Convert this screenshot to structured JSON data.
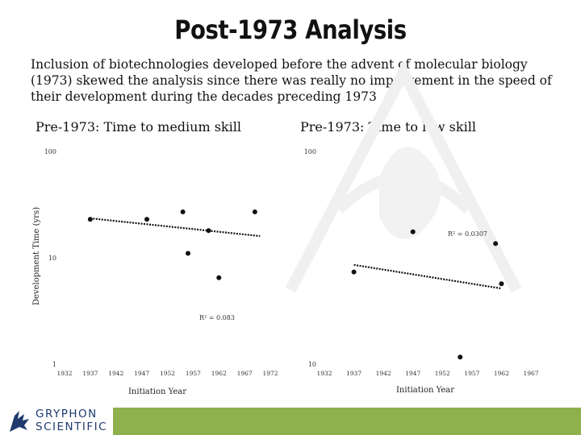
{
  "slide": {
    "title": "Post-1973 Analysis",
    "intro": "Inclusion of biotechnologies developed before the advent of molecular biology (1973) skewed the analysis since there was really no improvement in the speed of their development during the decades preceding 1973"
  },
  "logo": {
    "line1": "GRYPHON",
    "line2": "SCIENTIFIC",
    "icon": "gryphon-icon"
  },
  "colors": {
    "footer_bar": "#8fb04c",
    "logo_text": "#1e3a6e",
    "points": "#111111"
  },
  "chart_data": [
    {
      "type": "scatter",
      "title": "Pre-1973: Time to medium skill",
      "xlabel": "Initiation Year",
      "ylabel": "Development Time (yrs)",
      "y_scale": "log",
      "ylim": [
        1,
        100
      ],
      "y_ticks": [
        100,
        10,
        1
      ],
      "y_tick_labels": [
        "100",
        "10",
        "1"
      ],
      "xlim": [
        1932,
        1972
      ],
      "x_ticks": [
        "1932",
        "1937",
        "1942",
        "1947",
        "1952",
        "1957",
        "1962",
        "1967",
        "1972"
      ],
      "trendline": {
        "type": "linear",
        "start": [
          1937,
          23.5
        ],
        "end": [
          1970,
          16.0
        ],
        "r2_label": "R² = 0.083"
      },
      "points": [
        {
          "x": 1937,
          "y": 23
        },
        {
          "x": 1948,
          "y": 23
        },
        {
          "x": 1955,
          "y": 27
        },
        {
          "x": 1956,
          "y": 11
        },
        {
          "x": 1960,
          "y": 18
        },
        {
          "x": 1962,
          "y": 6.5
        },
        {
          "x": 1969,
          "y": 27
        }
      ],
      "legend": "none",
      "grid": false
    },
    {
      "type": "scatter",
      "title": "Pre-1973: Time to low skill",
      "xlabel": "Initiation Year",
      "ylabel": "",
      "y_scale": "linear",
      "ylim": [
        10,
        100
      ],
      "y_ticks": [
        100,
        10
      ],
      "y_tick_labels": [
        "100",
        "10"
      ],
      "xlim": [
        1932,
        1967
      ],
      "x_ticks": [
        "1932",
        "1937",
        "1942",
        "1947",
        "1952",
        "1957",
        "1962",
        "1967"
      ],
      "trendline": {
        "type": "linear",
        "start": [
          1937,
          52
        ],
        "end": [
          1962,
          42
        ],
        "r2_label": "R² = 0.0307"
      },
      "points": [
        {
          "x": 1937,
          "y": 49
        },
        {
          "x": 1947,
          "y": 66
        },
        {
          "x": 1955,
          "y": 13
        },
        {
          "x": 1961,
          "y": 61
        },
        {
          "x": 1962,
          "y": 44
        }
      ],
      "legend": "none",
      "grid": false
    }
  ]
}
